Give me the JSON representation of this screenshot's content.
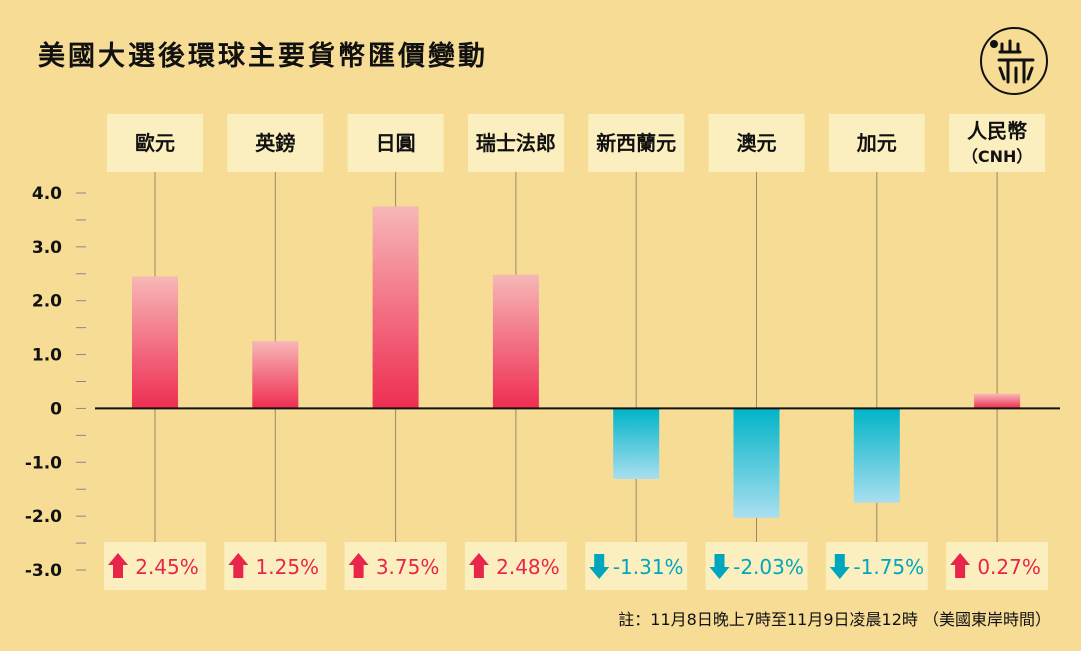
{
  "title": "美國大選後環球主要貨幣匯價變動",
  "note": "註：11月8日晚上7時至11月9日凌晨12時 （美國東岸時間）",
  "logo": {
    "text": "端"
  },
  "colors": {
    "background": "#f6dc95",
    "label_box": "#fbefbf",
    "up_top": "#f7b7b7",
    "up_bottom": "#ee2d52",
    "down_top": "#00b4c7",
    "down_bottom": "#a9dff0",
    "up_text": "#e8264b",
    "down_text": "#00a6bd"
  },
  "chart_data": {
    "type": "bar",
    "categories": [
      "歐元",
      "英鎊",
      "日圓",
      "瑞士法郎",
      "新西蘭元",
      "澳元",
      "加元",
      "人民幣"
    ],
    "category_sublabels": [
      "",
      "",
      "",
      "",
      "",
      "",
      "",
      "（CNH）"
    ],
    "values": [
      2.45,
      1.25,
      3.75,
      2.48,
      -1.31,
      -2.03,
      -1.75,
      0.27
    ],
    "value_labels": [
      "2.45%",
      "1.25%",
      "3.75%",
      "2.48%",
      "-1.31%",
      "-2.03%",
      "-1.75%",
      "0.27%"
    ],
    "ylim": [
      -3.0,
      4.0
    ],
    "yticks": [
      4.0,
      3.0,
      2.0,
      1.0,
      0,
      -1.0,
      -2.0,
      -3.0
    ],
    "ytick_labels": [
      "4.0",
      "3.0",
      "2.0",
      "1.0",
      "0",
      "-1.0",
      "-2.0",
      "-3.0"
    ],
    "title": "",
    "xlabel": "",
    "ylabel": ""
  }
}
